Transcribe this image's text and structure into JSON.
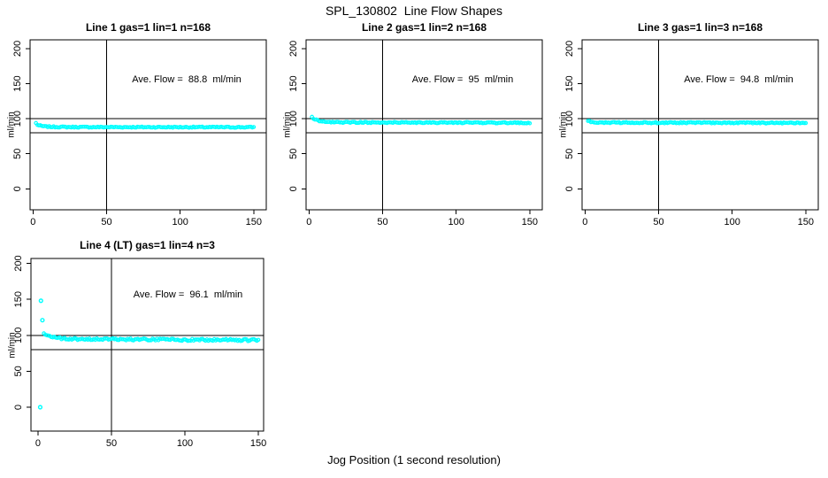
{
  "page": {
    "title": "SPL_130802  Line Flow Shapes",
    "xlabel": "Jog Position (1 second resolution)",
    "background_color": "#ffffff",
    "axis_color": "#000000",
    "point_color": "#00ffff"
  },
  "chart_data": [
    {
      "type": "scatter",
      "title": "Line 1 gas=1 lin=1 n=168",
      "line": 1,
      "gas": 1,
      "lin": 1,
      "n": 168,
      "annotation": "Ave. Flow =  88.8  ml/min",
      "ave_flow": 88.8,
      "ylabel": "ml/min",
      "x_ticks": [
        0,
        50,
        100,
        150
      ],
      "y_ticks": [
        0,
        50,
        100,
        150,
        200
      ],
      "xlim": [
        -2,
        158.5
      ],
      "ylim": [
        -29.9,
        212.6
      ],
      "hlines": [
        100,
        80
      ],
      "vline": 50,
      "marker": "open-circle",
      "color": "#00ffff",
      "band": {
        "x_start": 2,
        "x_end": 150,
        "x_step": 1,
        "jitter": 0.8,
        "keypoints": [
          [
            2,
            93.8
          ],
          [
            3,
            91.5
          ],
          [
            4,
            90.5
          ],
          [
            6,
            89.5
          ],
          [
            9,
            88.8
          ],
          [
            14,
            88.4
          ],
          [
            25,
            88.1
          ],
          [
            150,
            87.9
          ]
        ]
      },
      "outliers": []
    },
    {
      "type": "scatter",
      "title": "Line 2 gas=1 lin=2 n=168",
      "line": 2,
      "gas": 1,
      "lin": 2,
      "n": 168,
      "annotation": "Ave. Flow =  95  ml/min",
      "ave_flow": 95,
      "ylabel": "ml/min",
      "x_ticks": [
        0,
        50,
        100,
        150
      ],
      "y_ticks": [
        0,
        50,
        100,
        150,
        200
      ],
      "xlim": [
        -2,
        158.5
      ],
      "ylim": [
        -29.9,
        212.6
      ],
      "hlines": [
        100,
        80
      ],
      "vline": 50,
      "marker": "open-circle",
      "color": "#00ffff",
      "band": {
        "x_start": 2,
        "x_end": 150,
        "x_step": 1,
        "jitter": 0.8,
        "keypoints": [
          [
            2,
            103
          ],
          [
            3,
            100.5
          ],
          [
            4,
            99
          ],
          [
            6,
            97.5
          ],
          [
            9,
            96.3
          ],
          [
            14,
            95.4
          ],
          [
            25,
            94.8
          ],
          [
            150,
            94.2
          ]
        ]
      },
      "outliers": []
    },
    {
      "type": "scatter",
      "title": "Line 3 gas=1 lin=3 n=168",
      "line": 3,
      "gas": 1,
      "lin": 3,
      "n": 168,
      "annotation": "Ave. Flow =  94.8  ml/min",
      "ave_flow": 94.8,
      "ylabel": "ml/min",
      "x_ticks": [
        0,
        50,
        100,
        150
      ],
      "y_ticks": [
        0,
        50,
        100,
        150,
        200
      ],
      "xlim": [
        -2,
        158.5
      ],
      "ylim": [
        -29.9,
        212.6
      ],
      "hlines": [
        100,
        80
      ],
      "vline": 50,
      "marker": "open-circle",
      "color": "#00ffff",
      "band": {
        "x_start": 2,
        "x_end": 150,
        "x_step": 1,
        "jitter": 0.8,
        "keypoints": [
          [
            2,
            97.5
          ],
          [
            3,
            96.3
          ],
          [
            5,
            95.3
          ],
          [
            8,
            94.8
          ],
          [
            15,
            94.5
          ],
          [
            150,
            94.0
          ]
        ]
      },
      "outliers": []
    },
    {
      "type": "scatter",
      "title": "Line 4 (LT) gas=1 lin=4 n=3",
      "line": 4,
      "gas": 1,
      "lin": 4,
      "n": 3,
      "annotation": "Ave. Flow =  96.1  ml/min",
      "ave_flow": 96.1,
      "ylabel": "ml/min",
      "x_ticks": [
        0,
        50,
        100,
        150
      ],
      "y_ticks": [
        0,
        50,
        100,
        150,
        200
      ],
      "xlim": [
        -4.8,
        153.6
      ],
      "ylim": [
        -33.2,
        206.8
      ],
      "hlines": [
        100,
        80
      ],
      "vline": 50,
      "marker": "open-circle",
      "color": "#00ffff",
      "band": {
        "x_start": 4,
        "x_end": 150,
        "x_step": 1,
        "jitter": 1.5,
        "keypoints": [
          [
            4,
            101.5
          ],
          [
            5,
            100
          ],
          [
            7,
            98.5
          ],
          [
            10,
            97
          ],
          [
            15,
            95.8
          ],
          [
            25,
            95
          ],
          [
            60,
            94.2
          ],
          [
            150,
            93.2
          ]
        ]
      },
      "outliers": [
        [
          1.5,
          0
        ],
        [
          2,
          148
        ],
        [
          3,
          121
        ]
      ]
    }
  ]
}
